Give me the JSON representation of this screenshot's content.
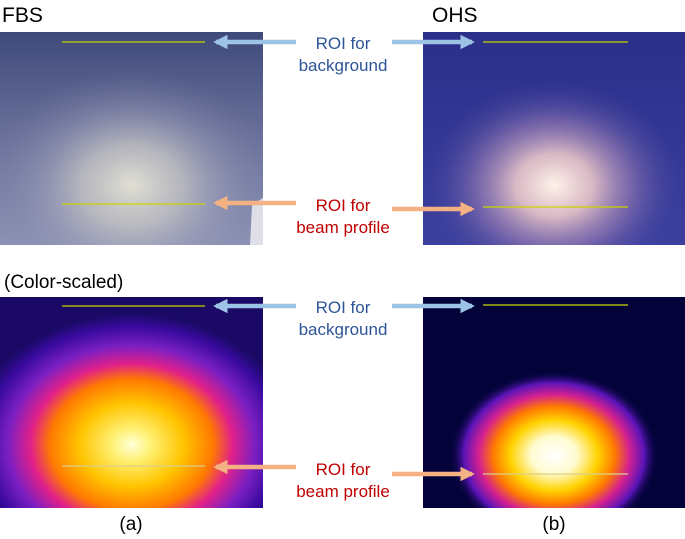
{
  "figure": {
    "left_title": "FBS",
    "right_title": "OHS",
    "section_title": "(Color-scaled)",
    "caption_left": "(a)",
    "caption_right": "(b)"
  },
  "labels": {
    "background_line1": "ROI for",
    "background_line2": "background",
    "beam_line1": "ROI for",
    "beam_line2": "beam profile"
  },
  "colors": {
    "background_label": "#2e5597",
    "beam_label": "#c00000",
    "background_arrow": "#9dc3e6",
    "beam_arrow": "#f4b183",
    "roi_line": "#c8d400"
  }
}
